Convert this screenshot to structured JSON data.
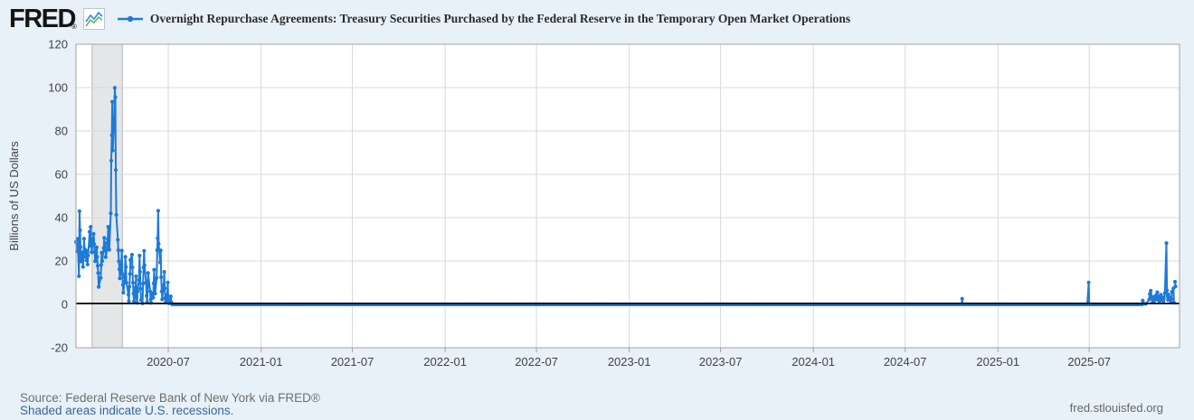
{
  "header": {
    "logo_text": "FRED",
    "registered_mark": "®",
    "series_title": "Overnight Repurchase Agreements: Treasury Securities Purchased by the Federal Reserve in the Temporary Open Market Operations"
  },
  "footer": {
    "source_line": "Source: Federal Reserve Bank of New York via FRED®",
    "recession_note": "Shaded areas indicate U.S. recessions.",
    "site_link": "fred.stlouisfed.org"
  },
  "colors": {
    "background": "#e8f1f8",
    "plot_background": "#ffffff",
    "line": "#1d7ad7",
    "zero_line": "#000000",
    "gridline": "#d9d9d9",
    "frame": "#a3a3a3",
    "recession_fill": "#e4e6e8",
    "recession_edge": "#b8b8b8",
    "tick_text": "#424242",
    "link": "#35649f",
    "source_text": "#6e6e6e"
  },
  "chart_data": {
    "type": "line",
    "title": "Overnight Repurchase Agreements: Treasury Securities Purchased by the Federal Reserve in the Temporary Open Market Operations",
    "xlabel": "",
    "ylabel": "Billions of US Dollars",
    "ylim": [
      -20,
      120
    ],
    "y_ticks": [
      -20,
      0,
      20,
      40,
      60,
      80,
      100,
      120
    ],
    "x_domain": [
      "2019-12-31",
      "2025-12-27"
    ],
    "x_ticks": [
      {
        "label": "2020-07",
        "date": "2020-07-01"
      },
      {
        "label": "2021-01",
        "date": "2021-01-01"
      },
      {
        "label": "2021-07",
        "date": "2021-07-01"
      },
      {
        "label": "2022-01",
        "date": "2022-01-01"
      },
      {
        "label": "2022-07",
        "date": "2022-07-01"
      },
      {
        "label": "2023-01",
        "date": "2023-01-01"
      },
      {
        "label": "2023-07",
        "date": "2023-07-01"
      },
      {
        "label": "2024-01",
        "date": "2024-01-01"
      },
      {
        "label": "2024-07",
        "date": "2024-07-01"
      },
      {
        "label": "2025-01",
        "date": "2025-01-01"
      },
      {
        "label": "2025-07",
        "date": "2025-07-01"
      }
    ],
    "grid": true,
    "legend_position": "top",
    "zero_line": true,
    "recessions": [
      {
        "start": "2020-02-01",
        "end": "2020-04-01"
      }
    ],
    "points": [
      [
        "2019-12-31",
        28.8
      ],
      [
        "2020-01-02",
        24.5
      ],
      [
        "2020-01-03",
        30.2
      ],
      [
        "2020-01-06",
        13.0
      ],
      [
        "2020-01-07",
        43.0
      ],
      [
        "2020-01-08",
        34.2
      ],
      [
        "2020-01-09",
        26.5
      ],
      [
        "2020-01-10",
        19.8
      ],
      [
        "2020-01-13",
        24.0
      ],
      [
        "2020-01-14",
        17.3
      ],
      [
        "2020-01-15",
        21.8
      ],
      [
        "2020-01-16",
        30.3
      ],
      [
        "2020-01-17",
        25.6
      ],
      [
        "2020-01-21",
        20.3
      ],
      [
        "2020-01-22",
        24.7
      ],
      [
        "2020-01-23",
        18.4
      ],
      [
        "2020-01-24",
        22.6
      ],
      [
        "2020-01-27",
        33.5
      ],
      [
        "2020-01-28",
        27.0
      ],
      [
        "2020-01-29",
        35.8
      ],
      [
        "2020-01-30",
        30.1
      ],
      [
        "2020-01-31",
        24.0
      ],
      [
        "2020-02-03",
        30.0
      ],
      [
        "2020-02-04",
        32.5
      ],
      [
        "2020-02-05",
        27.8
      ],
      [
        "2020-02-06",
        24.2
      ],
      [
        "2020-02-07",
        19.9
      ],
      [
        "2020-02-10",
        26.3
      ],
      [
        "2020-02-11",
        22.0
      ],
      [
        "2020-02-12",
        17.8
      ],
      [
        "2020-02-13",
        14.5
      ],
      [
        "2020-02-14",
        8.1
      ],
      [
        "2020-02-18",
        12.2
      ],
      [
        "2020-02-19",
        18.3
      ],
      [
        "2020-02-20",
        23.8
      ],
      [
        "2020-02-21",
        20.0
      ],
      [
        "2020-02-24",
        26.0
      ],
      [
        "2020-02-25",
        30.7
      ],
      [
        "2020-02-26",
        24.9
      ],
      [
        "2020-02-27",
        28.3
      ],
      [
        "2020-02-28",
        21.8
      ],
      [
        "2020-03-02",
        26.0
      ],
      [
        "2020-03-03",
        30.0
      ],
      [
        "2020-03-04",
        35.8
      ],
      [
        "2020-03-05",
        29.7
      ],
      [
        "2020-03-06",
        25.2
      ],
      [
        "2020-03-09",
        42.0
      ],
      [
        "2020-03-10",
        66.3
      ],
      [
        "2020-03-11",
        78.0
      ],
      [
        "2020-03-12",
        93.5
      ],
      [
        "2020-03-13",
        71.0
      ],
      [
        "2020-03-16",
        86.2
      ],
      [
        "2020-03-17",
        99.9
      ],
      [
        "2020-03-18",
        95.6
      ],
      [
        "2020-03-19",
        62.0
      ],
      [
        "2020-03-20",
        41.3
      ],
      [
        "2020-03-23",
        29.8
      ],
      [
        "2020-03-24",
        25.0
      ],
      [
        "2020-03-25",
        19.9
      ],
      [
        "2020-03-26",
        16.2
      ],
      [
        "2020-03-27",
        12.0
      ],
      [
        "2020-03-30",
        18.5
      ],
      [
        "2020-03-31",
        24.8
      ],
      [
        "2020-04-01",
        14.1
      ],
      [
        "2020-04-02",
        9.0
      ],
      [
        "2020-04-03",
        5.4
      ],
      [
        "2020-04-06",
        12.7
      ],
      [
        "2020-04-07",
        21.9
      ],
      [
        "2020-04-08",
        17.3
      ],
      [
        "2020-04-09",
        10.0
      ],
      [
        "2020-04-13",
        4.5
      ],
      [
        "2020-04-14",
        1.5
      ],
      [
        "2020-04-15",
        8.2
      ],
      [
        "2020-04-16",
        14.0
      ],
      [
        "2020-04-17",
        20.5
      ],
      [
        "2020-04-20",
        22.9
      ],
      [
        "2020-04-21",
        17.1
      ],
      [
        "2020-04-22",
        10.0
      ],
      [
        "2020-04-23",
        5.0
      ],
      [
        "2020-04-24",
        1.4
      ],
      [
        "2020-04-27",
        7.7
      ],
      [
        "2020-04-28",
        13.0
      ],
      [
        "2020-04-29",
        3.1
      ],
      [
        "2020-04-30",
        0.8
      ],
      [
        "2020-05-01",
        6.0
      ],
      [
        "2020-05-04",
        11.3
      ],
      [
        "2020-05-05",
        22.5
      ],
      [
        "2020-05-06",
        15.0
      ],
      [
        "2020-05-07",
        7.2
      ],
      [
        "2020-05-08",
        2.0
      ],
      [
        "2020-05-11",
        0.5
      ],
      [
        "2020-05-12",
        9.6
      ],
      [
        "2020-05-13",
        17.0
      ],
      [
        "2020-05-14",
        24.7
      ],
      [
        "2020-05-15",
        18.0
      ],
      [
        "2020-05-18",
        10.1
      ],
      [
        "2020-05-19",
        4.0
      ],
      [
        "2020-05-20",
        1.1
      ],
      [
        "2020-05-21",
        8.0
      ],
      [
        "2020-05-22",
        14.5
      ],
      [
        "2020-05-26",
        6.0
      ],
      [
        "2020-05-27",
        2.2
      ],
      [
        "2020-05-28",
        0.7
      ],
      [
        "2020-05-29",
        5.0
      ],
      [
        "2020-06-01",
        3.1
      ],
      [
        "2020-06-02",
        9.7
      ],
      [
        "2020-06-03",
        16.0
      ],
      [
        "2020-06-04",
        10.4
      ],
      [
        "2020-06-05",
        5.0
      ],
      [
        "2020-06-08",
        12.2
      ],
      [
        "2020-06-09",
        25.0
      ],
      [
        "2020-06-10",
        30.5
      ],
      [
        "2020-06-11",
        43.2
      ],
      [
        "2020-06-12",
        28.0
      ],
      [
        "2020-06-15",
        19.3
      ],
      [
        "2020-06-16",
        24.9
      ],
      [
        "2020-06-17",
        12.6
      ],
      [
        "2020-06-18",
        6.0
      ],
      [
        "2020-06-19",
        2.3
      ],
      [
        "2020-06-22",
        8.8
      ],
      [
        "2020-06-23",
        15.0
      ],
      [
        "2020-06-24",
        7.5
      ],
      [
        "2020-06-25",
        3.0
      ],
      [
        "2020-06-26",
        1.2
      ],
      [
        "2020-06-29",
        4.4
      ],
      [
        "2020-06-30",
        10.1
      ],
      [
        "2020-07-01",
        2.0
      ],
      [
        "2020-07-02",
        0.6
      ],
      [
        "2020-07-06",
        3.7
      ],
      [
        "2020-07-07",
        1.0
      ],
      [
        "2020-07-08",
        0.2
      ],
      [
        "2020-07-09",
        0
      ],
      [
        "2024-10-21",
        0
      ],
      [
        "2024-10-22",
        2.6
      ],
      [
        "2024-10-23",
        0
      ],
      [
        "2025-06-27",
        0
      ],
      [
        "2025-06-30",
        10.1
      ],
      [
        "2025-07-01",
        0
      ],
      [
        "2025-10-14",
        0
      ],
      [
        "2025-10-15",
        1.8
      ],
      [
        "2025-10-16",
        0.4
      ],
      [
        "2025-10-21",
        0.2
      ],
      [
        "2025-10-28",
        2.2
      ],
      [
        "2025-10-29",
        4.8
      ],
      [
        "2025-10-30",
        3.0
      ],
      [
        "2025-10-31",
        6.3
      ],
      [
        "2025-11-03",
        2.5
      ],
      [
        "2025-11-04",
        1.0
      ],
      [
        "2025-11-05",
        3.4
      ],
      [
        "2025-11-06",
        1.2
      ],
      [
        "2025-11-07",
        2.0
      ],
      [
        "2025-11-10",
        4.1
      ],
      [
        "2025-11-12",
        2.2
      ],
      [
        "2025-11-13",
        5.6
      ],
      [
        "2025-11-14",
        2.8
      ],
      [
        "2025-11-17",
        1.5
      ],
      [
        "2025-11-18",
        3.7
      ],
      [
        "2025-11-19",
        1.8
      ],
      [
        "2025-11-20",
        4.4
      ],
      [
        "2025-11-21",
        2.0
      ],
      [
        "2025-11-24",
        3.1
      ],
      [
        "2025-11-25",
        1.6
      ],
      [
        "2025-11-26",
        2.8
      ],
      [
        "2025-11-28",
        5.2
      ],
      [
        "2025-12-01",
        28.3
      ],
      [
        "2025-12-02",
        6.5
      ],
      [
        "2025-12-03",
        3.8
      ],
      [
        "2025-12-04",
        2.1
      ],
      [
        "2025-12-05",
        4.6
      ],
      [
        "2025-12-08",
        1.9
      ],
      [
        "2025-12-09",
        3.2
      ],
      [
        "2025-12-10",
        1.4
      ],
      [
        "2025-12-11",
        2.6
      ],
      [
        "2025-12-12",
        5.8
      ],
      [
        "2025-12-15",
        7.4
      ],
      [
        "2025-12-16",
        0.8
      ],
      [
        "2025-12-17",
        null
      ],
      [
        "2025-12-18",
        10.4
      ],
      [
        "2025-12-19",
        8.3
      ]
    ]
  }
}
